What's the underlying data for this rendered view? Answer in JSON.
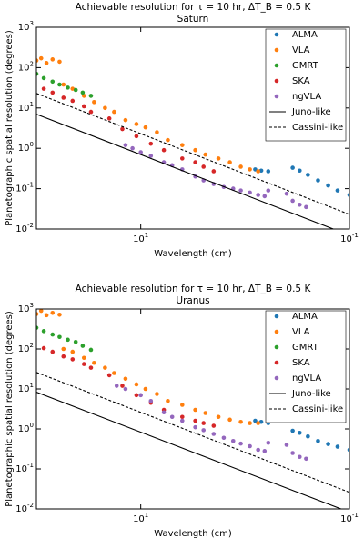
{
  "chart_data": [
    {
      "type": "scatter",
      "title": "Achievable resolution for τ = 10 hr, ΔT_B = 0.5 K",
      "subtitle": "Saturn",
      "xlabel": "Wavelength (cm)",
      "ylabel": "Planetographic spatial resolution (degrees)",
      "xscale": "log",
      "yscale": "log",
      "xlim": [
        100,
        0.1
      ],
      "ylim": [
        0.01,
        1000
      ],
      "xticks": [
        {
          "value": 10,
          "label": "10^1"
        },
        {
          "value": 0.1,
          "label": "10^-1"
        }
      ],
      "yticks": [
        {
          "value": 0.01,
          "label": "10^-2"
        },
        {
          "value": 0.1,
          "label": "10^-1"
        },
        {
          "value": 1,
          "label": "10^0"
        },
        {
          "value": 10,
          "label": "10^1"
        },
        {
          "value": 100,
          "label": "10^2"
        },
        {
          "value": 1000,
          "label": "10^3"
        }
      ],
      "legend": "upper right",
      "series": [
        {
          "name": "ALMA",
          "color": "#1f77b4",
          "style": "scatter",
          "x": [
            0.8,
            0.7,
            0.6,
            0.35,
            0.3,
            0.25,
            0.2,
            0.16,
            0.13,
            0.1
          ],
          "values": [
            0.3,
            0.28,
            0.27,
            0.33,
            0.28,
            0.22,
            0.16,
            0.12,
            0.09,
            0.07
          ]
        },
        {
          "name": "VLA",
          "color": "#ff7f0e",
          "style": "scatter",
          "x": [
            100,
            90,
            80,
            70,
            60,
            55,
            45,
            35,
            28,
            22,
            18,
            14,
            11,
            9,
            7,
            5.5,
            4,
            3,
            2.4,
            1.8,
            1.4,
            1.1,
            0.9,
            0.75
          ],
          "values": [
            150,
            170,
            130,
            160,
            140,
            38,
            30,
            20,
            14,
            10,
            8,
            5,
            4,
            3.3,
            2.5,
            1.6,
            1.2,
            0.9,
            0.7,
            0.56,
            0.45,
            0.35,
            0.3,
            0.27
          ]
        },
        {
          "name": "GMRT",
          "color": "#2ca02c",
          "style": "scatter",
          "x": [
            100,
            85,
            70,
            60,
            50,
            42,
            36,
            30
          ],
          "values": [
            70,
            55,
            45,
            38,
            32,
            28,
            24,
            20
          ]
        },
        {
          "name": "SKA",
          "color": "#d62728",
          "style": "scatter",
          "x": [
            85,
            70,
            55,
            45,
            35,
            30,
            20,
            15,
            11,
            8,
            6,
            4,
            3,
            2.5,
            2
          ],
          "values": [
            30,
            24,
            18,
            15,
            11,
            8,
            5.5,
            3,
            2,
            1.3,
            0.9,
            0.56,
            0.45,
            0.35,
            0.27
          ]
        },
        {
          "name": "ngVLA",
          "color": "#9467bd",
          "style": "scatter",
          "x": [
            14,
            12,
            10,
            8,
            6,
            5,
            4,
            3,
            2.5,
            2,
            1.6,
            1.3,
            1.1,
            0.9,
            0.75,
            0.65,
            0.6,
            0.4,
            0.35,
            0.3,
            0.26
          ],
          "values": [
            1.2,
            1,
            0.8,
            0.65,
            0.45,
            0.38,
            0.3,
            0.2,
            0.16,
            0.13,
            0.11,
            0.1,
            0.09,
            0.08,
            0.07,
            0.065,
            0.09,
            0.075,
            0.05,
            0.04,
            0.035
          ]
        },
        {
          "name": "Juno-like",
          "color": "#000000",
          "style": "solid",
          "x": [
            100,
            0.1
          ],
          "values": [
            7,
            0.007
          ]
        },
        {
          "name": "Cassini-like",
          "color": "#000000",
          "style": "dashed",
          "x": [
            100,
            0.1
          ],
          "values": [
            23,
            0.023
          ]
        }
      ]
    },
    {
      "type": "scatter",
      "title": "Achievable resolution for τ = 10 hr, ΔT_B = 0.5 K",
      "subtitle": "Uranus",
      "xlabel": "Wavelength (cm)",
      "ylabel": "Planetographic spatial resolution (degrees)",
      "xscale": "log",
      "yscale": "log",
      "xlim": [
        100,
        0.1
      ],
      "ylim": [
        0.01,
        1000
      ],
      "xticks": [
        {
          "value": 10,
          "label": "10^1"
        },
        {
          "value": 0.1,
          "label": "10^-1"
        }
      ],
      "yticks": [
        {
          "value": 0.01,
          "label": "10^-2"
        },
        {
          "value": 0.1,
          "label": "10^-1"
        },
        {
          "value": 1,
          "label": "10^0"
        },
        {
          "value": 10,
          "label": "10^1"
        },
        {
          "value": 100,
          "label": "10^2"
        },
        {
          "value": 1000,
          "label": "10^3"
        }
      ],
      "legend": "upper right",
      "series": [
        {
          "name": "ALMA",
          "color": "#1f77b4",
          "style": "scatter",
          "x": [
            0.8,
            0.7,
            0.6,
            0.35,
            0.3,
            0.25,
            0.2,
            0.16,
            0.13,
            0.1
          ],
          "values": [
            1.6,
            1.5,
            1.4,
            0.9,
            0.8,
            0.65,
            0.5,
            0.42,
            0.36,
            0.3
          ]
        },
        {
          "name": "VLA",
          "color": "#ff7f0e",
          "style": "scatter",
          "x": [
            100,
            90,
            80,
            70,
            60,
            55,
            45,
            35,
            28,
            22,
            18,
            14,
            11,
            9,
            7,
            5.5,
            4,
            3,
            2.4,
            1.8,
            1.4,
            1.1,
            0.9,
            0.75
          ],
          "values": [
            750,
            900,
            700,
            800,
            720,
            100,
            85,
            60,
            45,
            34,
            25,
            18,
            13,
            10,
            7.5,
            5,
            4,
            3,
            2.5,
            2,
            1.7,
            1.5,
            1.4,
            1.4
          ]
        },
        {
          "name": "GMRT",
          "color": "#2ca02c",
          "style": "scatter",
          "x": [
            100,
            85,
            70,
            60,
            50,
            42,
            36,
            30
          ],
          "values": [
            340,
            280,
            230,
            200,
            170,
            150,
            120,
            95
          ]
        },
        {
          "name": "SKA",
          "color": "#d62728",
          "style": "scatter",
          "x": [
            85,
            70,
            55,
            45,
            35,
            30,
            20,
            15,
            11,
            8,
            6,
            4,
            3,
            2.5,
            2
          ],
          "values": [
            105,
            85,
            65,
            55,
            42,
            34,
            22,
            12,
            7,
            4.5,
            3,
            2,
            1.6,
            1.4,
            1.2
          ]
        },
        {
          "name": "ngVLA",
          "color": "#9467bd",
          "style": "scatter",
          "x": [
            17,
            14,
            10,
            8,
            6,
            5,
            4,
            3,
            2.5,
            2,
            1.6,
            1.3,
            1.1,
            0.9,
            0.75,
            0.65,
            0.6,
            0.4,
            0.35,
            0.3,
            0.26
          ],
          "values": [
            12,
            10,
            7,
            5,
            2.6,
            2,
            1.6,
            1.1,
            0.93,
            0.75,
            0.6,
            0.5,
            0.43,
            0.37,
            0.3,
            0.28,
            0.45,
            0.4,
            0.25,
            0.2,
            0.18
          ]
        },
        {
          "name": "Juno-like",
          "color": "#000000",
          "style": "solid",
          "x": [
            100,
            0.1
          ],
          "values": [
            8.3,
            0.0083
          ]
        },
        {
          "name": "Cassini-like",
          "color": "#000000",
          "style": "dashed",
          "x": [
            100,
            0.1
          ],
          "values": [
            26,
            0.026
          ]
        }
      ]
    }
  ]
}
